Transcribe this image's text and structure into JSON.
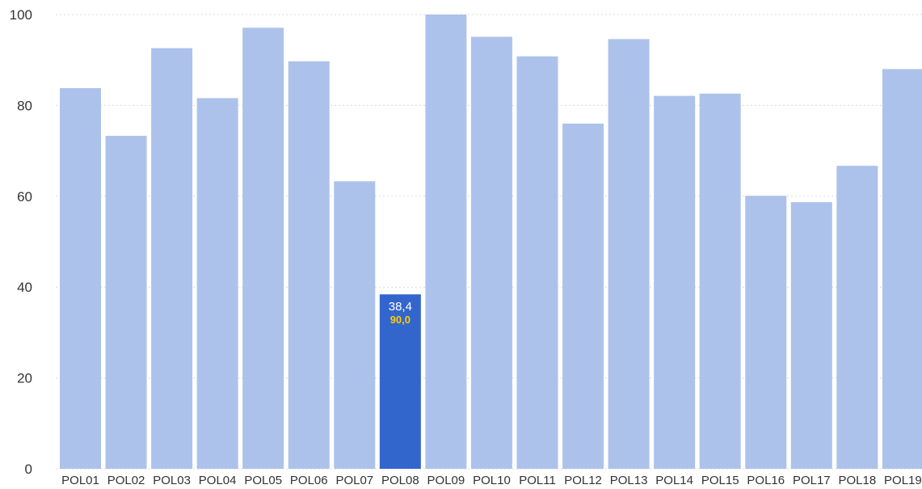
{
  "chart_data": {
    "type": "bar",
    "categories": [
      "POL01",
      "POL02",
      "POL03",
      "POL04",
      "POL05",
      "POL06",
      "POL07",
      "POL08",
      "POL09",
      "POL10",
      "POL11",
      "POL12",
      "POL13",
      "POL14",
      "POL15",
      "POL16",
      "POL17",
      "POL18",
      "POL19"
    ],
    "values": [
      83.8,
      73.3,
      92.6,
      81.6,
      97.1,
      89.7,
      63.3,
      38.4,
      100.0,
      95.1,
      90.8,
      76.0,
      94.6,
      82.1,
      82.6,
      60.1,
      58.7,
      66.7,
      88.0
    ],
    "highlighted": {
      "category": "POL08",
      "value_label": "38,4",
      "secondary_label": "90,0"
    },
    "ylim": [
      0,
      100
    ],
    "yticks": [
      "0",
      "20",
      "40",
      "60",
      "80",
      "100"
    ],
    "grid": true,
    "colors": {
      "bar": "#adc2eb",
      "highlight_bar": "#3366cc",
      "value_label": "#ffffff",
      "secondary_label": "#ffcc00",
      "grid": "#d9d9d9",
      "axis_text": "#333333"
    }
  }
}
